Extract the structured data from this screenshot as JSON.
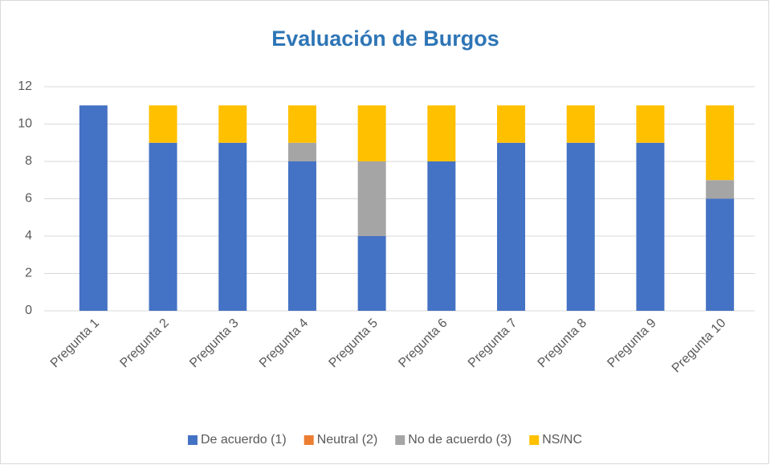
{
  "chart_data": {
    "type": "stacked_bar",
    "title": "Evaluación de Burgos",
    "categories": [
      "Pregunta 1",
      "Pregunta 2",
      "Pregunta 3",
      "Pregunta 4",
      "Pregunta 5",
      "Pregunta 6",
      "Pregunta 7",
      "Pregunta 8",
      "Pregunta 9",
      "Pregunta 10"
    ],
    "series": [
      {
        "name": "De acuerdo (1)",
        "color": "#4472c4",
        "values": [
          11,
          9,
          9,
          8,
          4,
          8,
          9,
          9,
          9,
          6
        ]
      },
      {
        "name": "Neutral (2)",
        "color": "#ed7d31",
        "values": [
          0,
          0,
          0,
          0,
          0,
          0,
          0,
          0,
          0,
          0
        ]
      },
      {
        "name": "No de acuerdo (3)",
        "color": "#a5a5a5",
        "values": [
          0,
          0,
          0,
          1,
          4,
          0,
          0,
          0,
          0,
          1
        ]
      },
      {
        "name": "NS/NC",
        "color": "#ffc000",
        "values": [
          0,
          2,
          2,
          2,
          3,
          3,
          2,
          2,
          2,
          4
        ]
      }
    ],
    "ylim": [
      0,
      12
    ],
    "yticks": [
      0,
      2,
      4,
      6,
      8,
      10,
      12
    ],
    "grid": true,
    "legend": "bottom"
  }
}
